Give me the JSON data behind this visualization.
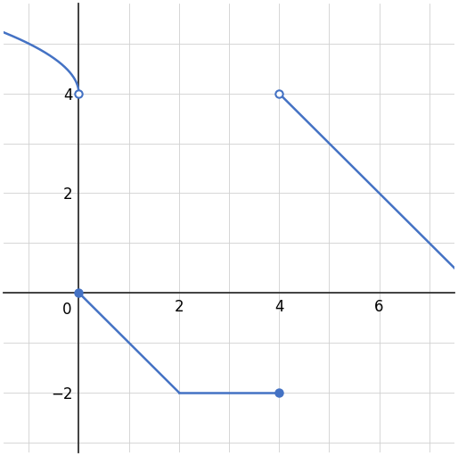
{
  "line_color": "#4472c4",
  "line_width": 1.8,
  "xlim": [
    -1.5,
    7.5
  ],
  "ylim": [
    -3.2,
    5.8
  ],
  "xticks": [
    2,
    4,
    6
  ],
  "yticks": [
    -2,
    2,
    4
  ],
  "x_zero_label": "0",
  "grid_color": "#d0d0d0",
  "background_color": "#ffffff",
  "open_points": [
    [
      0,
      4
    ],
    [
      4,
      4
    ]
  ],
  "solid_points": [
    [
      0,
      0
    ],
    [
      4,
      -2
    ]
  ],
  "marker_size": 6,
  "marker_edge_width": 1.5,
  "figsize": [
    5.14,
    5.11
  ],
  "dpi": 100,
  "axis_color": "#333333",
  "tick_fontsize": 12
}
